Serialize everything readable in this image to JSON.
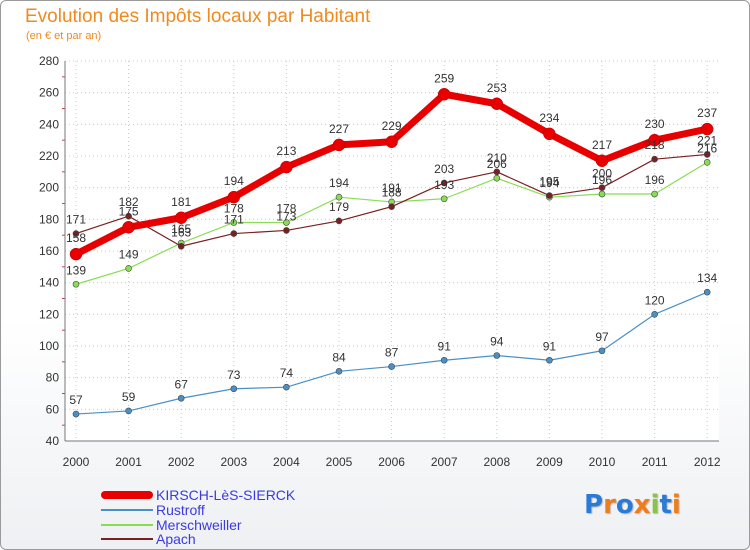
{
  "chart_data": {
    "type": "line",
    "title": "Evolution des Impôts locaux par Habitant",
    "subtitle": "(en € et par an)",
    "xlabel": "",
    "ylabel": "",
    "ylim": [
      40,
      280
    ],
    "yticks": [
      40,
      60,
      80,
      100,
      120,
      140,
      160,
      180,
      200,
      220,
      240,
      260,
      280
    ],
    "categories": [
      "2000",
      "2001",
      "2002",
      "2003",
      "2004",
      "2005",
      "2006",
      "2007",
      "2008",
      "2009",
      "2010",
      "2011",
      "2012"
    ],
    "grid": true,
    "legend_position": "bottom-left",
    "series": [
      {
        "name": "KIRSCH-LèS-SIERCK",
        "color": "#e80000",
        "values": [
          158,
          175,
          181,
          194,
          213,
          227,
          229,
          259,
          253,
          234,
          217,
          230,
          237
        ]
      },
      {
        "name": "Rustroff",
        "color": "#4a90c8",
        "values": [
          57,
          59,
          67,
          73,
          74,
          84,
          87,
          91,
          94,
          91,
          97,
          120,
          134
        ]
      },
      {
        "name": "Merschweiller",
        "color": "#88dd55",
        "values": [
          139,
          149,
          165,
          178,
          178,
          194,
          191,
          193,
          206,
          194,
          196,
          196,
          216
        ]
      },
      {
        "name": "Apach",
        "color": "#7a2020",
        "values": [
          171,
          182,
          163,
          171,
          173,
          179,
          188,
          203,
          210,
          195,
          200,
          218,
          221
        ]
      }
    ]
  },
  "logo": {
    "text": "Proxiti",
    "letters": [
      {
        "char": "P",
        "color": "#2b7bd6"
      },
      {
        "char": "r",
        "color": "#f07d1a"
      },
      {
        "char": "o",
        "color": "#2b7bd6"
      },
      {
        "char": "x",
        "color": "#f07d1a"
      },
      {
        "char": "i",
        "color": "#8bc34a"
      },
      {
        "char": "t",
        "color": "#2b7bd6"
      },
      {
        "char": "i",
        "color": "#f07d1a"
      }
    ]
  }
}
